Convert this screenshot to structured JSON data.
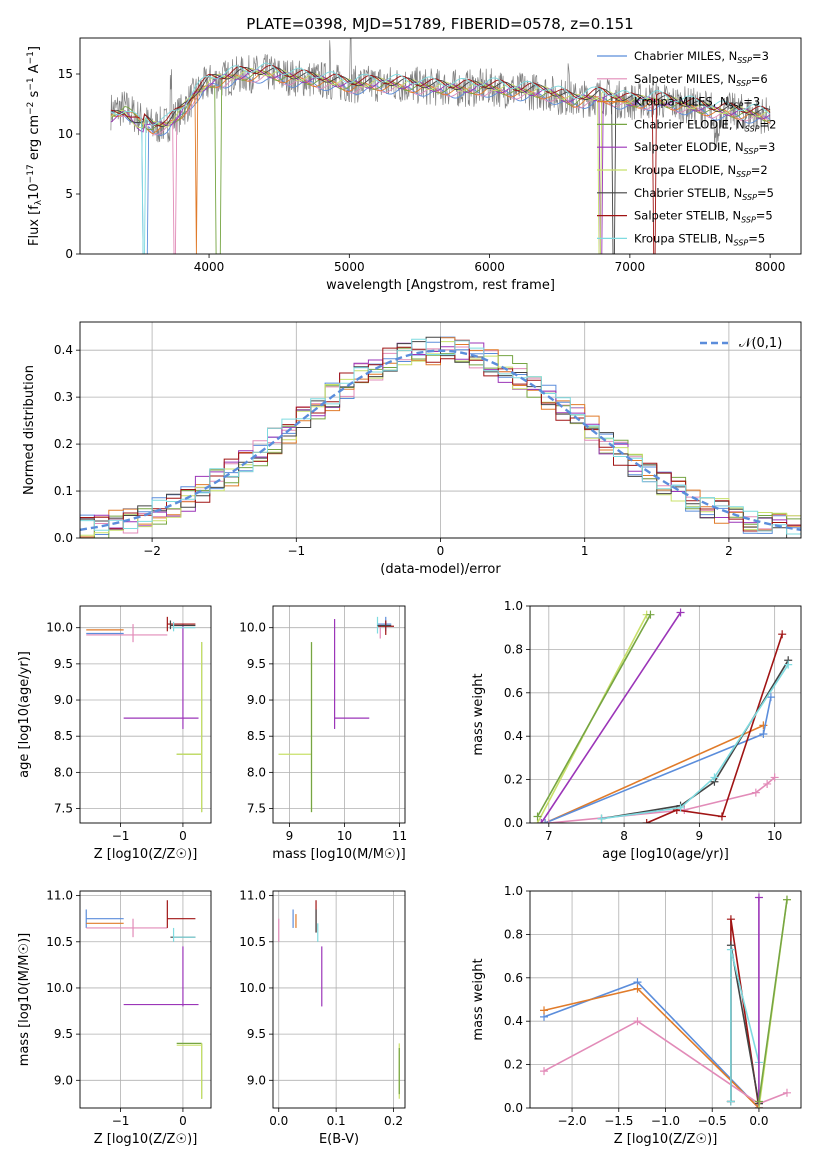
{
  "figure": {
    "title": "PLATE=0398, MJD=51789, FIBERID=0578, z=0.151"
  },
  "chart_data": [
    {
      "id": "spectrum",
      "type": "line",
      "xlabel": "wavelength [Angstrom, rest frame]",
      "ylabel": "Flux [f_λ 10^-17 erg cm^-2 s^-1 A^-1]",
      "xlim": [
        3080,
        8220
      ],
      "ylim": [
        0,
        18
      ],
      "xticks": [
        4000,
        5000,
        6000,
        7000,
        8000
      ],
      "yticks": [
        0,
        5,
        10,
        15
      ],
      "legend_position": "top-right",
      "series": [
        {
          "name": "Chabrier MILES, N_SSP=3",
          "color": "#5b8ddb"
        },
        {
          "name": "Salpeter MILES, N_SSP=6",
          "color": "#e28bb8"
        },
        {
          "name": "Kroupa MILES, N_SSP=3",
          "color": "#e07b2a"
        },
        {
          "name": "Chabrier ELODIE, N_SSP=2",
          "color": "#76a543"
        },
        {
          "name": "Salpeter ELODIE, N_SSP=3",
          "color": "#9b35b8"
        },
        {
          "name": "Kroupa ELODIE, N_SSP=2",
          "color": "#c8e06a"
        },
        {
          "name": "Chabrier STELIB, N_SSP=5",
          "color": "#444444"
        },
        {
          "name": "Salpeter STELIB, N_SSP=5",
          "color": "#a01414"
        },
        {
          "name": "Kroupa STELIB, N_SSP=5",
          "color": "#7fdbe0"
        }
      ],
      "data_color": "#808080",
      "x": [
        3300,
        3400,
        3500,
        3600,
        3700,
        3800,
        3900,
        4000,
        4100,
        4200,
        4400,
        4600,
        4800,
        5000,
        5200,
        5400,
        5600,
        5800,
        6000,
        6200,
        6400,
        6600,
        6800,
        7000,
        7200,
        7400,
        7600,
        7800,
        8000
      ],
      "y": [
        11.9,
        12.2,
        11.3,
        10.6,
        10.8,
        11.8,
        13.3,
        14.3,
        14.6,
        14.9,
        15.1,
        14.7,
        14.5,
        14.1,
        14.2,
        14.1,
        13.9,
        13.8,
        13.9,
        13.6,
        13.5,
        12.8,
        13.2,
        12.7,
        12.8,
        12.4,
        12.0,
        11.8,
        11.5
      ]
    },
    {
      "id": "residuals",
      "type": "line",
      "xlabel": "(data-model)/error",
      "ylabel": "Normed distribution",
      "xlim": [
        -2.5,
        2.5
      ],
      "ylim": [
        0,
        0.46
      ],
      "xticks": [
        -2,
        -1,
        0,
        1,
        2
      ],
      "yticks": [
        0.0,
        0.1,
        0.2,
        0.3,
        0.4
      ],
      "grid": true,
      "legend_position": "top-right",
      "reference_label": "𝒩(0,1)",
      "reference_color": "#5b8ddb",
      "bin_width": 0.1
    },
    {
      "id": "age_vs_Z",
      "type": "scatter",
      "xlabel": "Z [log10(Z/Z☉)]",
      "ylabel": "age  [log10(age/yr)]",
      "xlim": [
        -1.65,
        0.45
      ],
      "ylim": [
        7.3,
        10.3
      ],
      "xticks": [
        -1,
        0
      ],
      "yticks": [
        7.5,
        8.0,
        8.5,
        9.0,
        9.5,
        10.0
      ],
      "grid": true
    },
    {
      "id": "age_vs_mass",
      "type": "scatter",
      "xlabel": "mass [log10(M/M☉)]",
      "ylabel": "",
      "xlim": [
        8.7,
        11.1
      ],
      "ylim": [
        7.3,
        10.3
      ],
      "xticks": [
        9,
        10,
        11
      ],
      "yticks": [
        7.5,
        8.0,
        8.5,
        9.0,
        9.5,
        10.0
      ],
      "grid": true
    },
    {
      "id": "weight_vs_age",
      "type": "line",
      "xlabel": "age  [log10(age/yr)]",
      "ylabel": "mass weight",
      "xlim": [
        6.75,
        10.35
      ],
      "ylim": [
        0,
        1.0
      ],
      "xticks": [
        7,
        8,
        9,
        10
      ],
      "yticks": [
        0.0,
        0.2,
        0.4,
        0.6,
        0.8,
        1.0
      ],
      "grid": true,
      "series": [
        {
          "color": "#c8e06a",
          "points": [
            [
              6.85,
              0.0
            ],
            [
              8.3,
              0.96
            ]
          ]
        },
        {
          "color": "#76a543",
          "points": [
            [
              6.85,
              0.03
            ],
            [
              8.35,
              0.96
            ]
          ]
        },
        {
          "color": "#9b35b8",
          "points": [
            [
              6.9,
              0.0
            ],
            [
              8.75,
              0.97
            ]
          ]
        },
        {
          "color": "#e07b2a",
          "points": [
            [
              6.95,
              0.0
            ],
            [
              9.85,
              0.45
            ]
          ]
        },
        {
          "color": "#5b8ddb",
          "points": [
            [
              6.95,
              0.0
            ],
            [
              9.85,
              0.41
            ],
            [
              9.95,
              0.58
            ]
          ]
        },
        {
          "color": "#e28bb8",
          "points": [
            [
              7.0,
              0.0
            ],
            [
              8.8,
              0.06
            ],
            [
              9.75,
              0.14
            ],
            [
              9.9,
              0.18
            ],
            [
              10.0,
              0.21
            ]
          ]
        },
        {
          "color": "#a01414",
          "points": [
            [
              8.3,
              0.0
            ],
            [
              8.7,
              0.06
            ],
            [
              9.3,
              0.03
            ],
            [
              10.1,
              0.87
            ]
          ]
        },
        {
          "color": "#444444",
          "points": [
            [
              7.7,
              0.02
            ],
            [
              8.75,
              0.08
            ],
            [
              9.2,
              0.19
            ],
            [
              10.18,
              0.75
            ]
          ]
        },
        {
          "color": "#7fdbe0",
          "points": [
            [
              7.7,
              0.02
            ],
            [
              8.75,
              0.07
            ],
            [
              9.2,
              0.21
            ],
            [
              10.18,
              0.73
            ]
          ]
        }
      ]
    },
    {
      "id": "mass_vs_Z",
      "type": "scatter",
      "xlabel": "Z [log10(Z/Z☉)]",
      "ylabel": "mass [log10(M/M☉)]",
      "xlim": [
        -1.65,
        0.45
      ],
      "ylim": [
        8.7,
        11.05
      ],
      "xticks": [
        -1,
        0
      ],
      "yticks": [
        9.0,
        9.5,
        10.0,
        10.5,
        11.0
      ],
      "grid": true
    },
    {
      "id": "mass_vs_ebv",
      "type": "scatter",
      "xlabel": "E(B-V)",
      "ylabel": "",
      "xlim": [
        -0.01,
        0.22
      ],
      "ylim": [
        8.7,
        11.05
      ],
      "xticks": [
        0.0,
        0.1,
        0.2
      ],
      "yticks": [
        9.0,
        9.5,
        10.0,
        10.5,
        11.0
      ],
      "grid": true
    },
    {
      "id": "weight_vs_Z",
      "type": "line",
      "xlabel": "Z [log10(Z/Z☉)]",
      "ylabel": "mass weight",
      "xlim": [
        -2.45,
        0.45
      ],
      "ylim": [
        0,
        1.0
      ],
      "xticks": [
        -2.0,
        -1.5,
        -1.0,
        -0.5,
        0.0
      ],
      "yticks": [
        0.0,
        0.2,
        0.4,
        0.6,
        0.8,
        1.0
      ],
      "grid": true,
      "series": [
        {
          "color": "#5b8ddb",
          "points": [
            [
              -2.3,
              0.42
            ],
            [
              -1.3,
              0.58
            ],
            [
              0.0,
              0.0
            ]
          ]
        },
        {
          "color": "#e07b2a",
          "points": [
            [
              -2.3,
              0.45
            ],
            [
              -1.3,
              0.55
            ],
            [
              0.0,
              0.0
            ]
          ]
        },
        {
          "color": "#e28bb8",
          "points": [
            [
              -2.3,
              0.17
            ],
            [
              -1.3,
              0.4
            ],
            [
              0.0,
              0.02
            ],
            [
              0.3,
              0.07
            ]
          ]
        },
        {
          "color": "#a01414",
          "points": [
            [
              -0.3,
              0.03
            ],
            [
              -0.3,
              0.87
            ],
            [
              0.0,
              0.0
            ]
          ]
        },
        {
          "color": "#444444",
          "points": [
            [
              -0.3,
              0.03
            ],
            [
              -0.3,
              0.75
            ],
            [
              0.0,
              0.02
            ]
          ]
        },
        {
          "color": "#7fdbe0",
          "points": [
            [
              -0.3,
              0.03
            ],
            [
              -0.3,
              0.73
            ],
            [
              0.0,
              0.21
            ]
          ]
        },
        {
          "color": "#9b35b8",
          "points": [
            [
              0.0,
              0.0
            ],
            [
              0.0,
              0.97
            ]
          ]
        },
        {
          "color": "#c8e06a",
          "points": [
            [
              0.0,
              0.0
            ],
            [
              0.3,
              0.96
            ]
          ]
        },
        {
          "color": "#76a543",
          "points": [
            [
              0.0,
              0.03
            ],
            [
              0.3,
              0.96
            ]
          ]
        }
      ]
    }
  ]
}
